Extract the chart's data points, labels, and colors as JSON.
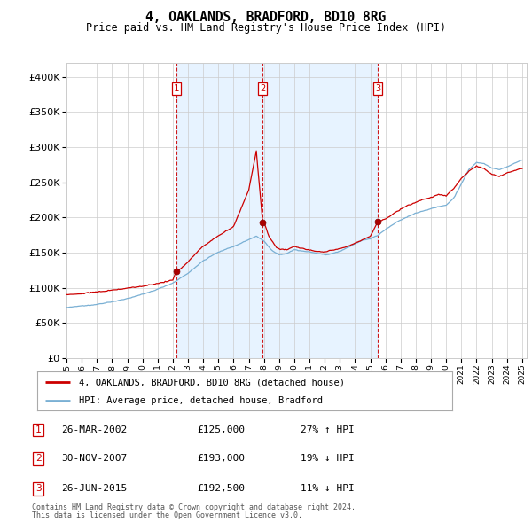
{
  "title": "4, OAKLANDS, BRADFORD, BD10 8RG",
  "subtitle": "Price paid vs. HM Land Registry's House Price Index (HPI)",
  "ylim": [
    0,
    420000
  ],
  "yticks": [
    0,
    50000,
    100000,
    150000,
    200000,
    250000,
    300000,
    350000,
    400000
  ],
  "background_color": "#ffffff",
  "grid_color": "#cccccc",
  "sale_color": "#cc0000",
  "hpi_color": "#7ab0d4",
  "shade_color": "#ddeeff",
  "vline_color": "#cc0000",
  "legend_label_sale": "4, OAKLANDS, BRADFORD, BD10 8RG (detached house)",
  "legend_label_hpi": "HPI: Average price, detached house, Bradford",
  "transactions": [
    {
      "num": 1,
      "date_label": "26-MAR-2002",
      "price": 125000,
      "pct": "27%",
      "dir": "↑",
      "rel": "HPI",
      "x_year": 2002.23
    },
    {
      "num": 2,
      "date_label": "30-NOV-2007",
      "price": 193000,
      "pct": "19%",
      "dir": "↓",
      "rel": "HPI",
      "x_year": 2007.92
    },
    {
      "num": 3,
      "date_label": "26-JUN-2015",
      "price": 192500,
      "pct": "11%",
      "dir": "↓",
      "rel": "HPI",
      "x_year": 2015.49
    }
  ],
  "footer1": "Contains HM Land Registry data © Crown copyright and database right 2024.",
  "footer2": "This data is licensed under the Open Government Licence v3.0.",
  "xlim_left": 1995.0,
  "xlim_right": 2025.3
}
